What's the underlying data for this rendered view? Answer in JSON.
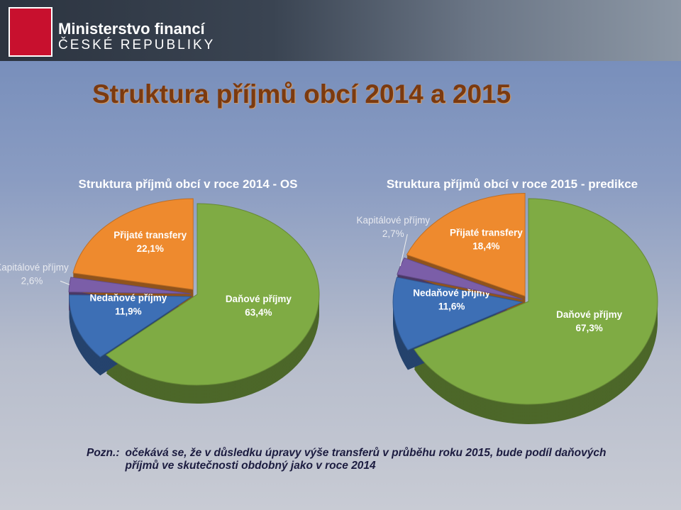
{
  "header": {
    "title": "Ministerstvo financí",
    "subtitle": "ČESKÉ REPUBLIKY"
  },
  "title": "Struktura příjmů obcí 2014 a 2015",
  "note": {
    "label": "Pozn.:",
    "text": "očekává se, že v důsledku úpravy výše transferů v průběhu roku 2015, bude podíl daňových příjmů ve skutečnosti obdobný jako v roce 2014"
  },
  "chart_data": [
    {
      "type": "pie",
      "title": "Struktura příjmů obcí v roce 2014 - OS",
      "categories": [
        "Daňové příjmy",
        "Nedaňové příjmy",
        "Kapitálové příjmy",
        "Přijaté transfery"
      ],
      "values": [
        63.4,
        11.9,
        2.6,
        22.1
      ],
      "value_labels": [
        "63,4%",
        "11,9%",
        "2,6%",
        "22,1%"
      ],
      "colors": [
        "#7fab44",
        "#3d6fb5",
        "#7b5ea8",
        "#ee8a2e"
      ]
    },
    {
      "type": "pie",
      "title": "Struktura příjmů obcí v roce 2015 - predikce",
      "categories": [
        "Daňové příjmy",
        "Nedaňové příjmy",
        "Kapitálové příjmy",
        "Přijaté transfery"
      ],
      "values": [
        67.3,
        11.6,
        2.7,
        18.4
      ],
      "value_labels": [
        "67,3%",
        "11,6%",
        "2,7%",
        "18,4%"
      ],
      "colors": [
        "#7fab44",
        "#3d6fb5",
        "#7b5ea8",
        "#ee8a2e"
      ]
    }
  ]
}
